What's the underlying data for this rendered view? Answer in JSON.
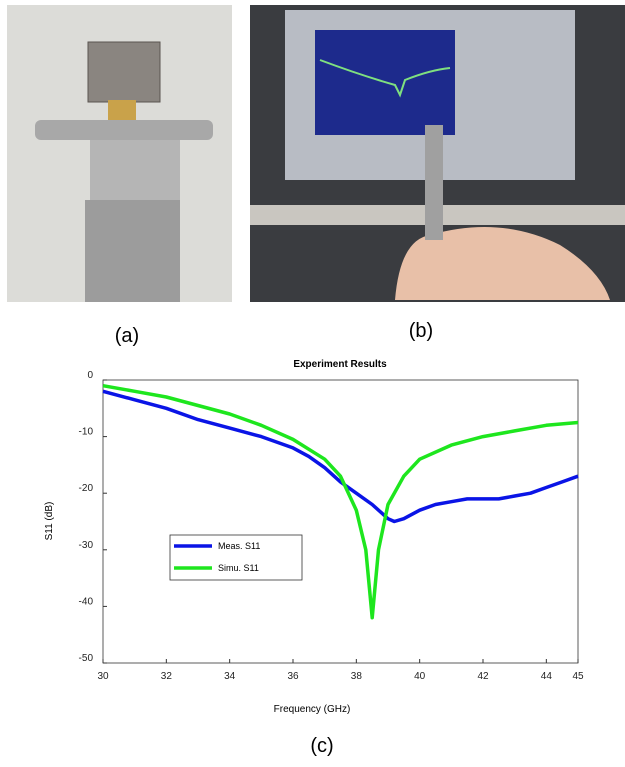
{
  "panels": {
    "a": "(a)",
    "b": "(b)",
    "c": "(c)"
  },
  "chart_data": {
    "type": "line",
    "title": "Experiment Results",
    "x_label": "Frequency (GHz)",
    "y_label": "S11 (dB)",
    "xlim": [
      30,
      45
    ],
    "xticks": [
      30,
      32,
      34,
      36,
      38,
      40,
      42,
      44,
      45
    ],
    "ylim": [
      -50,
      0
    ],
    "yticks": [
      0,
      -10,
      -20,
      -30,
      -40,
      -50
    ],
    "series": [
      {
        "name": "Meas. S11",
        "color": "#0a14e6",
        "x": [
          30,
          31,
          32,
          33,
          34,
          35,
          36,
          36.5,
          37,
          37.5,
          38,
          38.5,
          39,
          39.2,
          39.5,
          40,
          40.5,
          41,
          41.5,
          42,
          42.5,
          43,
          43.5,
          44,
          44.5,
          45
        ],
        "values": [
          -2,
          -3.5,
          -5,
          -7,
          -8.5,
          -10,
          -12,
          -13.5,
          -15.5,
          -18,
          -20,
          -22,
          -24.5,
          -25,
          -24.5,
          -23,
          -22,
          -21.5,
          -21,
          -21,
          -21,
          -20.5,
          -20,
          -19,
          -18,
          -17
        ]
      },
      {
        "name": "Simu. S11",
        "color": "#1ee61e",
        "x": [
          30,
          31,
          32,
          33,
          34,
          35,
          36,
          37,
          37.5,
          38,
          38.3,
          38.5,
          38.7,
          39,
          39.5,
          40,
          41,
          42,
          43,
          44,
          45
        ],
        "values": [
          -1,
          -2,
          -3,
          -4.5,
          -6,
          -8,
          -10.5,
          -14,
          -17,
          -23,
          -30,
          -42,
          -30,
          -22,
          -17,
          -14,
          -11.5,
          -10,
          -9,
          -8,
          -7.5
        ]
      }
    ],
    "legend": "lower-left"
  }
}
